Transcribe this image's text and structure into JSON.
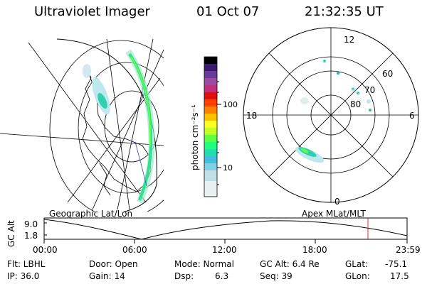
{
  "header": {
    "instrument": "Ultraviolet Imager",
    "date": "01 Oct 07",
    "time": "21:32:35 UT"
  },
  "colorbar": {
    "label": "photon cm⁻²s⁻¹",
    "ticks": [
      "100",
      "10"
    ],
    "colors": [
      "#000000",
      "#3a1a6a",
      "#6a3a9a",
      "#9a4aa0",
      "#c03080",
      "#e01010",
      "#ff4000",
      "#ff8000",
      "#ffc000",
      "#ffff20",
      "#c0ff20",
      "#60ff40",
      "#20ff80",
      "#20e0b0",
      "#40c0e0",
      "#80d0e8",
      "#c0e0e8",
      "#e8f0f0"
    ]
  },
  "polar": {
    "labels": {
      "top": "12",
      "left": "18",
      "right": "6",
      "bottom": "0"
    },
    "rings": [
      "60",
      "70",
      "80"
    ]
  },
  "geo_label": "Geographic Lat/Lon",
  "apex_label": "Apex MLat/MLT",
  "altplot": {
    "ylabel": "GC Alt",
    "yticks": [
      "9.0",
      "1.8"
    ],
    "xticks": [
      "00:00",
      "06:00",
      "12:00",
      "18:00",
      "23:59"
    ]
  },
  "info": {
    "row1": {
      "flt": "Flt: LBHL",
      "door": "Door: Open",
      "mode": "Mode: Normal",
      "gcalt": "GC Alt: 6.4 Re",
      "glat_label": "GLat:",
      "glat_value": "-75.1"
    },
    "row2": {
      "ip": "IP: 36.0",
      "gain": "Gain: 14",
      "dsp_label": "Dsp:",
      "dsp_value": "6.3",
      "seq": "Seq: 39",
      "glon_label": "GLon:",
      "glon_value": "17.5"
    }
  }
}
